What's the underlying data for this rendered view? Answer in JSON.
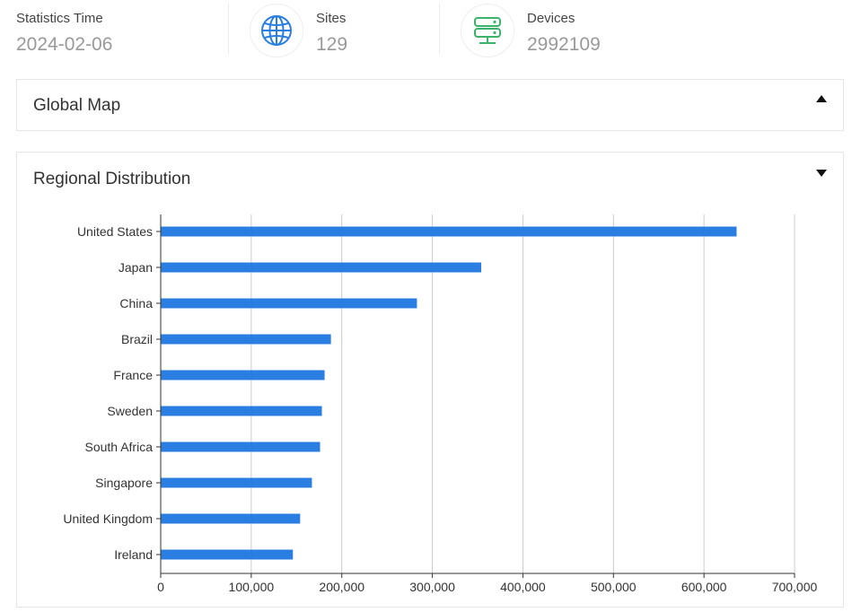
{
  "stats": {
    "time": {
      "label": "Statistics Time",
      "value": "2024-02-06"
    },
    "sites": {
      "label": "Sites",
      "value": "129",
      "icon": "globe-icon"
    },
    "devices": {
      "label": "Devices",
      "value": "2992109",
      "icon": "server-icon"
    }
  },
  "panels": {
    "global_map": {
      "title": "Global Map",
      "state": "collapsed"
    },
    "regional": {
      "title": "Regional Distribution",
      "state": "expanded"
    }
  },
  "colors": {
    "bar": "#2a7de1",
    "grid": "#cccccc",
    "axis": "#333333",
    "globe": "#2a7de1",
    "server": "#3bb36b"
  },
  "chart_data": {
    "type": "bar",
    "orientation": "horizontal",
    "categories": [
      "United States",
      "Japan",
      "China",
      "Brazil",
      "France",
      "Sweden",
      "South Africa",
      "Singapore",
      "United Kingdom",
      "Ireland"
    ],
    "values": [
      636000,
      354000,
      283000,
      188000,
      181000,
      178000,
      176000,
      167000,
      154000,
      146000
    ],
    "xlim": [
      0,
      700000
    ],
    "xticks": [
      "0",
      "100,000",
      "200,000",
      "300,000",
      "400,000",
      "500,000",
      "600,000",
      "700,000"
    ],
    "grid": true,
    "title": "",
    "xlabel": "",
    "ylabel": ""
  }
}
